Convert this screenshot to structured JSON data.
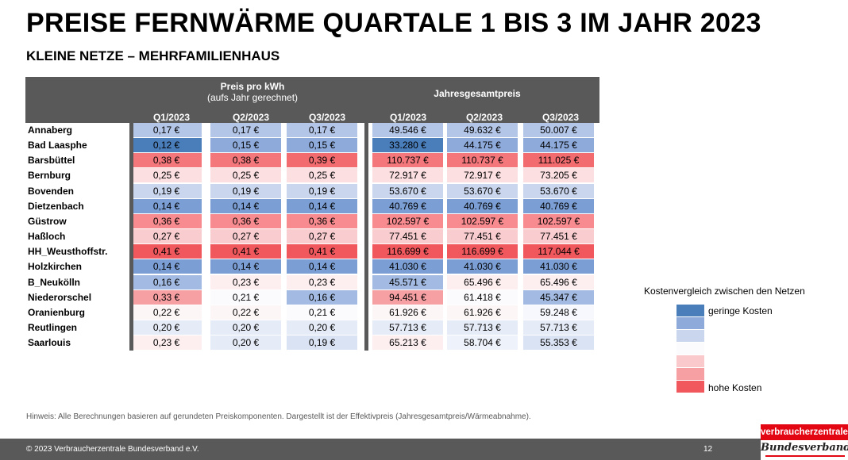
{
  "title": "PREISE FERNWÄRME QUARTALE 1 BIS 3 IM JAHR 2023",
  "subtitle": "KLEINE NETZE – MEHRFAMILIENHAUS",
  "table": {
    "group_kwh": "Preis pro kWh",
    "group_kwh_sub": "(aufs Jahr gerechnet)",
    "group_total": "Jahresgesamtpreis",
    "columns": [
      "Q1/2023",
      "Q2/2023",
      "Q3/2023",
      "Q1/2023",
      "Q2/2023",
      "Q3/2023"
    ],
    "rows": [
      {
        "name": "Annaberg",
        "values": [
          "0,17 €",
          "0,17 €",
          "0,17 €",
          "49.546 €",
          "49.632 €",
          "50.007 €"
        ],
        "colors": [
          "#b4c6e7",
          "#b4c6e7",
          "#b4c6e7",
          "#b4c6e7",
          "#b4c6e7",
          "#b4c6e7"
        ]
      },
      {
        "name": "Bad Laasphe",
        "values": [
          "0,12 €",
          "0,15 €",
          "0,15 €",
          "33.280 €",
          "44.175 €",
          "44.175 €"
        ],
        "colors": [
          "#4a7ebb",
          "#8eaadb",
          "#8eaadb",
          "#4a7ebb",
          "#8eaadb",
          "#8eaadb"
        ]
      },
      {
        "name": "Barsbüttel",
        "values": [
          "0,38 €",
          "0,38 €",
          "0,39 €",
          "110.737 €",
          "110.737 €",
          "111.025 €"
        ],
        "colors": [
          "#f4777b",
          "#f4777b",
          "#f26b6f",
          "#f4777b",
          "#f4777b",
          "#f26b6f"
        ]
      },
      {
        "name": "Bernburg",
        "values": [
          "0,25 €",
          "0,25 €",
          "0,25 €",
          "72.917 €",
          "72.917 €",
          "73.205 €"
        ],
        "colors": [
          "#fbdfe1",
          "#fbdfe1",
          "#fbdfe1",
          "#fbdfe1",
          "#fbdfe1",
          "#fbdfe1"
        ]
      },
      {
        "name": "Bovenden",
        "values": [
          "0,19 €",
          "0,19 €",
          "0,19 €",
          "53.670 €",
          "53.670 €",
          "53.670 €"
        ],
        "colors": [
          "#c9d6ee",
          "#c9d6ee",
          "#c9d6ee",
          "#c9d6ee",
          "#c9d6ee",
          "#c9d6ee"
        ]
      },
      {
        "name": "Dietzenbach",
        "values": [
          "0,14 €",
          "0,14 €",
          "0,14 €",
          "40.769 €",
          "40.769 €",
          "40.769 €"
        ],
        "colors": [
          "#7b9ed4",
          "#7b9ed4",
          "#7b9ed4",
          "#7b9ed4",
          "#7b9ed4",
          "#7b9ed4"
        ]
      },
      {
        "name": "Güstrow",
        "values": [
          "0,36 €",
          "0,36 €",
          "0,36 €",
          "102.597 €",
          "102.597 €",
          "102.597 €"
        ],
        "colors": [
          "#f78b8f",
          "#f78b8f",
          "#f78b8f",
          "#f78b8f",
          "#f78b8f",
          "#f78b8f"
        ]
      },
      {
        "name": "Haßloch",
        "values": [
          "0,27 €",
          "0,27 €",
          "0,27 €",
          "77.451 €",
          "77.451 €",
          "77.451 €"
        ],
        "colors": [
          "#f9cdd0",
          "#f9cdd0",
          "#f9cdd0",
          "#f9cdd0",
          "#f9cdd0",
          "#f9cdd0"
        ]
      },
      {
        "name": "HH_Weusthoffstr.",
        "values": [
          "0,41 €",
          "0,41 €",
          "0,41 €",
          "116.699 €",
          "116.699 €",
          "117.044 €"
        ],
        "colors": [
          "#f0585d",
          "#f0585d",
          "#f0585d",
          "#f0585d",
          "#f0585d",
          "#f0585d"
        ]
      },
      {
        "name": "Holzkirchen",
        "values": [
          "0,14 €",
          "0,14 €",
          "0,14 €",
          "41.030 €",
          "41.030 €",
          "41.030 €"
        ],
        "colors": [
          "#7b9ed4",
          "#7b9ed4",
          "#7b9ed4",
          "#7b9ed4",
          "#7b9ed4",
          "#7b9ed4"
        ]
      },
      {
        "name": "B_Neukölln",
        "values": [
          "0,16 €",
          "0,23 €",
          "0,23 €",
          "45.571 €",
          "65.496 €",
          "65.496 €"
        ],
        "colors": [
          "#a3bbe2",
          "#fdeef0",
          "#fdeef0",
          "#a3bbe2",
          "#fdeef0",
          "#fdeef0"
        ]
      },
      {
        "name": "Niederorschel",
        "values": [
          "0,33 €",
          "0,21 €",
          "0,16 €",
          "94.451 €",
          "61.418 €",
          "45.347 €"
        ],
        "colors": [
          "#f7a0a4",
          "#fbfbfe",
          "#a3bbe2",
          "#f7a0a4",
          "#fbfbfe",
          "#a3bbe2"
        ]
      },
      {
        "name": "Oranienburg",
        "values": [
          "0,22 €",
          "0,22 €",
          "0,21 €",
          "61.926 €",
          "61.926 €",
          "59.248 €"
        ],
        "colors": [
          "#fdf6f7",
          "#fdf6f7",
          "#fbfbfe",
          "#fdf6f7",
          "#fdf6f7",
          "#f6f8fd"
        ]
      },
      {
        "name": "Reutlingen",
        "values": [
          "0,20 €",
          "0,20 €",
          "0,20 €",
          "57.713 €",
          "57.713 €",
          "57.713 €"
        ],
        "colors": [
          "#e6ecf7",
          "#e6ecf7",
          "#e6ecf7",
          "#e6ecf7",
          "#e6ecf7",
          "#e6ecf7"
        ]
      },
      {
        "name": "Saarlouis",
        "values": [
          "0,23 €",
          "0,20 €",
          "0,19 €",
          "65.213 €",
          "58.704 €",
          "55.353 €"
        ],
        "colors": [
          "#fdeef0",
          "#e6ecf7",
          "#dae3f3",
          "#fdeef0",
          "#eef2fa",
          "#dae3f3"
        ]
      }
    ]
  },
  "legend": {
    "title": "Kostenvergleich zwischen den Netzen",
    "low_label": "geringe Kosten",
    "high_label": "hohe Kosten",
    "colors": [
      "#4a7ebb",
      "#8eaadb",
      "#c9d6ee",
      "#fbfbfe",
      "#f9c9cc",
      "#f7a0a4",
      "#f0585d"
    ]
  },
  "hint": "Hinweis: Alle Berechnungen basieren auf gerundeten Preiskomponenten. Dargestellt ist der Effektivpreis (Jahresgesamtpreis/Wärmeabnahme).",
  "footer": {
    "copyright": "© 2023 Verbraucherzentrale Bundesverband e.V.",
    "page": "12"
  },
  "logo": {
    "line1": "verbraucherzentrale",
    "line2": "Bundesverband"
  }
}
